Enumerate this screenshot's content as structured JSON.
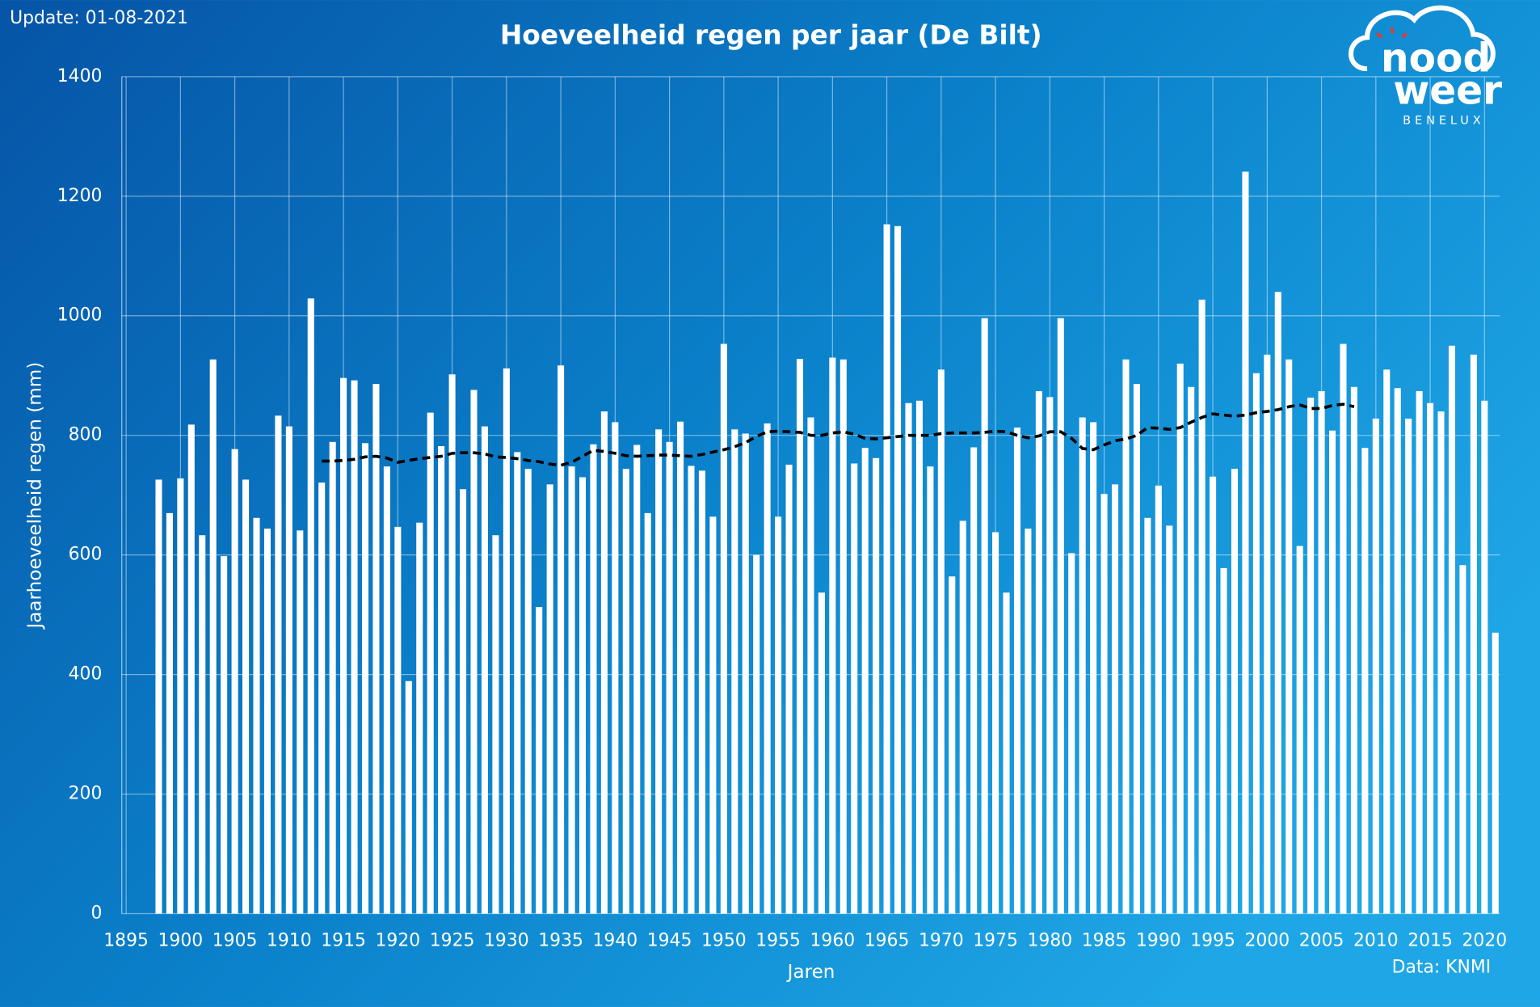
{
  "update": "Update: 01-08-2021",
  "source": "Data: KNMI",
  "logo": {
    "line1": "nood",
    "line2": "weer",
    "line3": "BENELUX"
  },
  "chart_data": {
    "type": "bar",
    "title": "Hoeveelheid regen per jaar (De Bilt)",
    "x_label": "Jaren",
    "y_label": "Jaarhoeveelheid regen (mm)",
    "x": [
      1898,
      1899,
      1900,
      1901,
      1902,
      1903,
      1904,
      1905,
      1906,
      1907,
      1908,
      1909,
      1910,
      1911,
      1912,
      1913,
      1914,
      1915,
      1916,
      1917,
      1918,
      1919,
      1920,
      1921,
      1922,
      1923,
      1924,
      1925,
      1926,
      1927,
      1928,
      1929,
      1930,
      1931,
      1932,
      1933,
      1934,
      1935,
      1936,
      1937,
      1938,
      1939,
      1940,
      1941,
      1942,
      1943,
      1944,
      1945,
      1946,
      1947,
      1948,
      1949,
      1950,
      1951,
      1952,
      1953,
      1954,
      1955,
      1956,
      1957,
      1958,
      1959,
      1960,
      1961,
      1962,
      1963,
      1964,
      1965,
      1966,
      1967,
      1968,
      1969,
      1970,
      1971,
      1972,
      1973,
      1974,
      1975,
      1976,
      1977,
      1978,
      1979,
      1980,
      1981,
      1982,
      1983,
      1984,
      1985,
      1986,
      1987,
      1988,
      1989,
      1990,
      1991,
      1992,
      1993,
      1994,
      1995,
      1996,
      1997,
      1998,
      1999,
      2000,
      2001,
      2002,
      2003,
      2004,
      2005,
      2006,
      2007,
      2008,
      2009,
      2010,
      2011,
      2012,
      2013,
      2014,
      2015,
      2016,
      2017,
      2018,
      2019,
      2020,
      2021
    ],
    "series": [
      {
        "type": "bar",
        "color": "#ffffff",
        "values": [
          726,
          670,
          728,
          818,
          633,
          927,
          598,
          777,
          726,
          662,
          644,
          833,
          815,
          641,
          1029,
          721,
          789,
          896,
          892,
          787,
          886,
          748,
          647,
          389,
          654,
          838,
          782,
          902,
          710,
          876,
          815,
          633,
          912,
          772,
          744,
          513,
          718,
          917,
          748,
          730,
          785,
          840,
          822,
          744,
          784,
          670,
          810,
          789,
          823,
          749,
          741,
          664,
          953,
          810,
          803,
          600,
          820,
          664,
          751,
          928,
          830,
          537,
          930,
          927,
          753,
          779,
          762,
          1153,
          1150,
          854,
          858,
          748,
          910,
          564,
          657,
          780,
          996,
          638,
          537,
          813,
          644,
          874,
          864,
          996,
          603,
          830,
          822,
          702,
          718,
          927,
          886,
          662,
          716,
          649,
          920,
          881,
          1027,
          731,
          578,
          744,
          1241,
          904,
          935,
          1040,
          927,
          615,
          863,
          874,
          808,
          953,
          881,
          779,
          828,
          910,
          879,
          828,
          874,
          854,
          840,
          950,
          583,
          935,
          858,
          470
        ]
      },
      {
        "type": "line",
        "color": "#000000",
        "dashed": true,
        "values": [
          null,
          null,
          null,
          null,
          null,
          null,
          null,
          null,
          null,
          null,
          null,
          null,
          null,
          null,
          null,
          757,
          757,
          758,
          760,
          764,
          765,
          762,
          755,
          758,
          761,
          763,
          765,
          770,
          771,
          771,
          769,
          764,
          763,
          761,
          758,
          756,
          752,
          750,
          755,
          765,
          775,
          773,
          770,
          766,
          765,
          766,
          767,
          767,
          766,
          765,
          768,
          772,
          776,
          781,
          788,
          798,
          806,
          807,
          806,
          805,
          800,
          800,
          804,
          806,
          802,
          795,
          794,
          796,
          798,
          800,
          800,
          800,
          803,
          804,
          804,
          804,
          805,
          807,
          806,
          800,
          796,
          799,
          806,
          806,
          795,
          778,
          776,
          784,
          791,
          794,
          800,
          813,
          812,
          810,
          813,
          822,
          830,
          836,
          834,
          832,
          834,
          838,
          840,
          843,
          848,
          851,
          845,
          845,
          850,
          852,
          848,
          null,
          null,
          null,
          null,
          null,
          null,
          null,
          null,
          null,
          null,
          null,
          null,
          null
        ]
      }
    ],
    "xlim": [
      1894.6,
      2021.4
    ],
    "xticks": [
      1895,
      1900,
      1905,
      1910,
      1915,
      1920,
      1925,
      1930,
      1935,
      1940,
      1945,
      1950,
      1955,
      1960,
      1965,
      1970,
      1975,
      1980,
      1985,
      1990,
      1995,
      2000,
      2005,
      2010,
      2015,
      2020
    ],
    "ylim": [
      0,
      1400
    ],
    "yticks": [
      0,
      200,
      400,
      600,
      800,
      1000,
      1200,
      1400
    ],
    "grid": true,
    "grid_color": "#ffffff"
  }
}
